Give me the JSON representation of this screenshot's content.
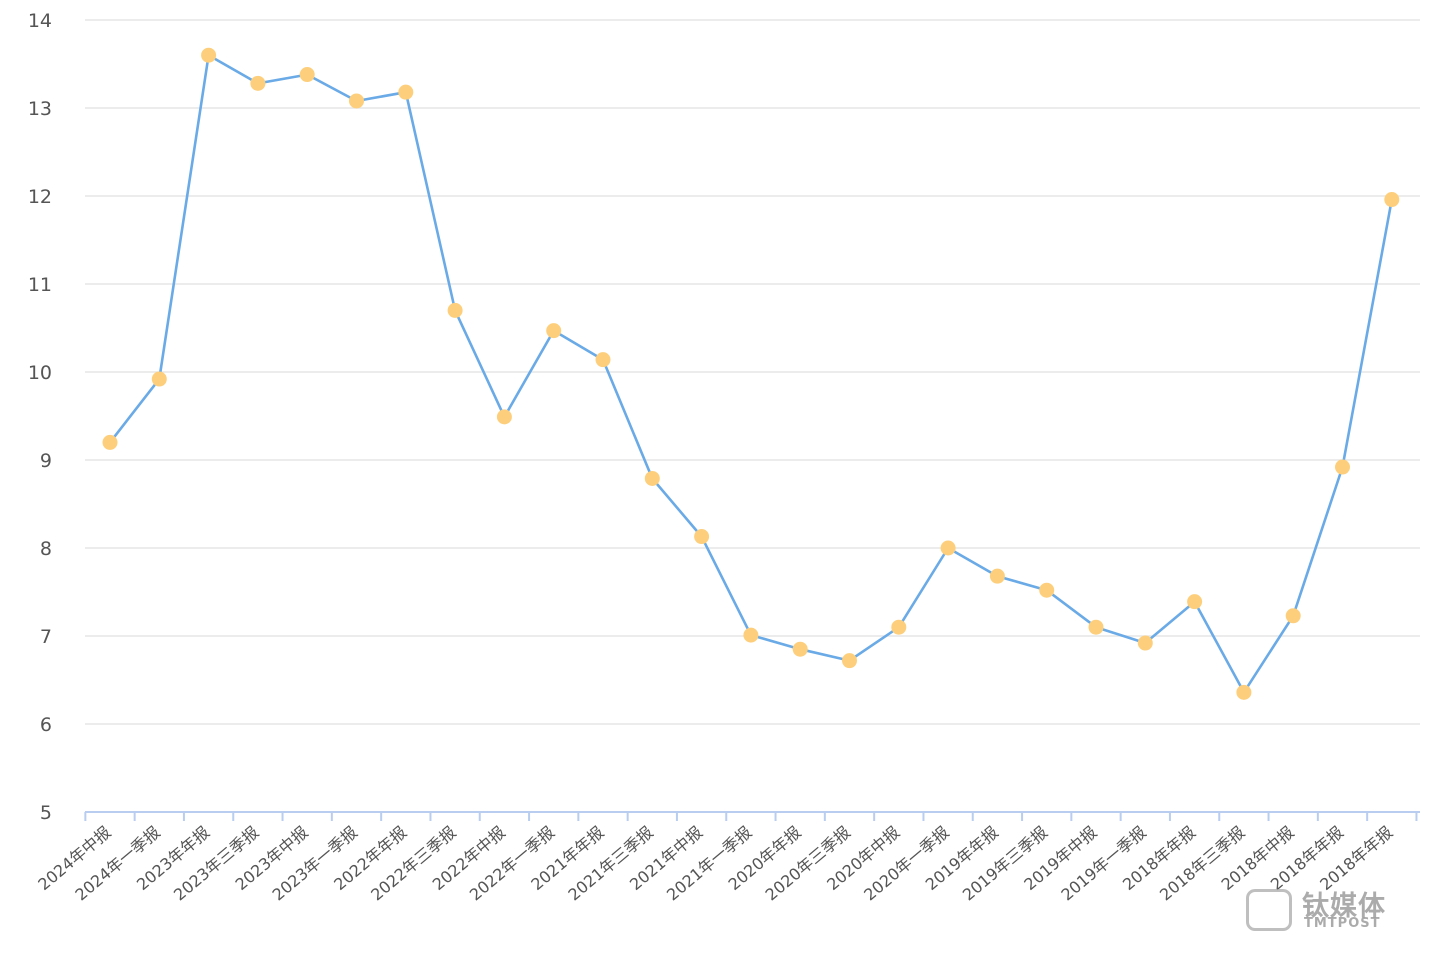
{
  "chart_data": {
    "type": "line",
    "title": "",
    "xlabel": "",
    "ylabel": "",
    "ylim": [
      5,
      14
    ],
    "yticks": [
      5,
      6,
      7,
      8,
      9,
      10,
      11,
      12,
      13,
      14
    ],
    "grid": true,
    "legend": "none",
    "line_color": "#6aaae6",
    "marker_color": "#fdcf7c",
    "categories": [
      "2024年中报",
      "2024年一季报",
      "2023年年报",
      "2023年三季报",
      "2023年中报",
      "2023年一季报",
      "2022年年报",
      "2022年三季报",
      "2022年中报",
      "2022年一季报",
      "2021年年报",
      "2021年三季报",
      "2021年中报",
      "2021年一季报",
      "2020年年报",
      "2020年三季报",
      "2020年中报",
      "2020年一季报",
      "2019年年报",
      "2019年三季报",
      "2019年中报",
      "2019年一季报",
      "2018年年报",
      "2018年三季报",
      "2018年中报",
      "2018年年报",
      "2018年年报"
    ],
    "series": [
      {
        "values": [
          9.2,
          9.92,
          13.6,
          13.28,
          13.38,
          13.08,
          13.18,
          10.7,
          9.49,
          10.47,
          10.14,
          8.79,
          8.13,
          7.01,
          6.85,
          6.72,
          7.1,
          8.0,
          7.68,
          7.52,
          7.1,
          6.92,
          7.39,
          6.36,
          7.23,
          8.92,
          11.96
        ]
      }
    ]
  },
  "watermark": {
    "name": "钛媒体",
    "en": "TMTPOST"
  }
}
